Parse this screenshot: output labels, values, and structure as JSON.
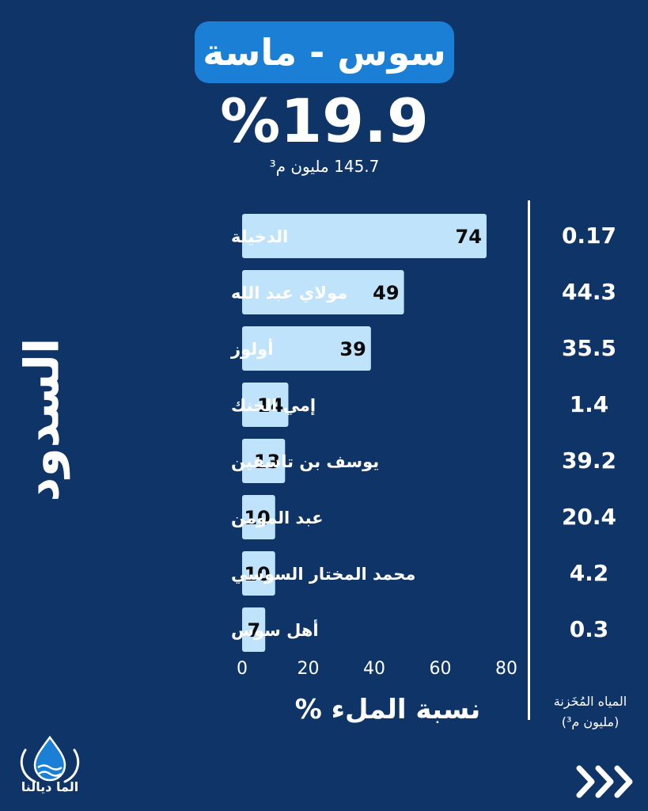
{
  "header": {
    "title": "سوس - ماسة",
    "fill_rate": "%19.9",
    "stored_total": "145.7 مليون م³"
  },
  "vertical_title": "السدود",
  "stored_column": {
    "header_line1": "المياه المُخَزنة",
    "header_line2": "(مليون م³)",
    "values": [
      "0.17",
      "44.3",
      "35.5",
      "1.4",
      "39.2",
      "20.4",
      "4.2",
      "0.3"
    ]
  },
  "chart_data": {
    "type": "bar",
    "orientation": "horizontal",
    "categories": [
      "الدخيلة",
      "مولاي عبد الله",
      "أولوز",
      "إمي الخنك",
      "يوسف بن تاشفين",
      "عبد المومن",
      "محمد المختار السوسي",
      "أهل سوس"
    ],
    "values": [
      74,
      49,
      39,
      14,
      13,
      10,
      10,
      7
    ],
    "xlabel": "نسبة الملء %",
    "xlim": [
      0,
      80
    ],
    "xticks": [
      0,
      20,
      40,
      60,
      80
    ],
    "grid": false,
    "bar_color": "#bfe3fb",
    "label_color": "#0b0b0b"
  },
  "branding": {
    "logo_text": "الما ديالنا",
    "next_icon": "triple-chevron-right-icon"
  },
  "colors": {
    "background": "#0f3467",
    "title_box": "#1b7fd6",
    "bar": "#bfe3fb",
    "text": "#ffffff"
  }
}
